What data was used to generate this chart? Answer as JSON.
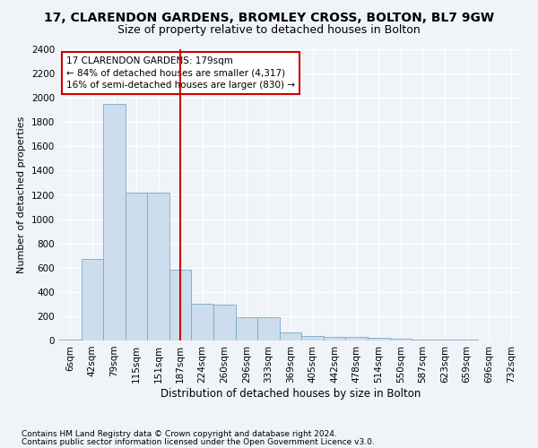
{
  "title1": "17, CLARENDON GARDENS, BROMLEY CROSS, BOLTON, BL7 9GW",
  "title2": "Size of property relative to detached houses in Bolton",
  "xlabel": "Distribution of detached houses by size in Bolton",
  "ylabel": "Number of detached properties",
  "footer1": "Contains HM Land Registry data © Crown copyright and database right 2024.",
  "footer2": "Contains public sector information licensed under the Open Government Licence v3.0.",
  "categories": [
    "6sqm",
    "42sqm",
    "79sqm",
    "115sqm",
    "151sqm",
    "187sqm",
    "224sqm",
    "260sqm",
    "296sqm",
    "333sqm",
    "369sqm",
    "405sqm",
    "442sqm",
    "478sqm",
    "514sqm",
    "550sqm",
    "587sqm",
    "623sqm",
    "659sqm",
    "696sqm",
    "732sqm"
  ],
  "values": [
    5,
    670,
    1950,
    1220,
    1220,
    580,
    300,
    295,
    195,
    195,
    70,
    40,
    28,
    28,
    22,
    15,
    10,
    7,
    5,
    3,
    2
  ],
  "bar_color": "#ccdded",
  "bar_edge_color": "#7aa8c8",
  "vline_x": 5,
  "vline_color": "#cc0000",
  "annotation_text": "17 CLARENDON GARDENS: 179sqm\n← 84% of detached houses are smaller (4,317)\n16% of semi-detached houses are larger (830) →",
  "annotation_box_facecolor": "#ffffff",
  "annotation_box_edge": "#cc0000",
  "ylim": [
    0,
    2400
  ],
  "yticks": [
    0,
    200,
    400,
    600,
    800,
    1000,
    1200,
    1400,
    1600,
    1800,
    2000,
    2200,
    2400
  ],
  "figure_facecolor": "#f0f4f8",
  "axes_facecolor": "#f0f4f8",
  "grid_color": "#ffffff",
  "title1_fontsize": 10,
  "title2_fontsize": 9,
  "xlabel_fontsize": 8.5,
  "ylabel_fontsize": 8,
  "tick_fontsize": 7.5,
  "ann_fontsize": 7.5,
  "footer_fontsize": 6.5
}
